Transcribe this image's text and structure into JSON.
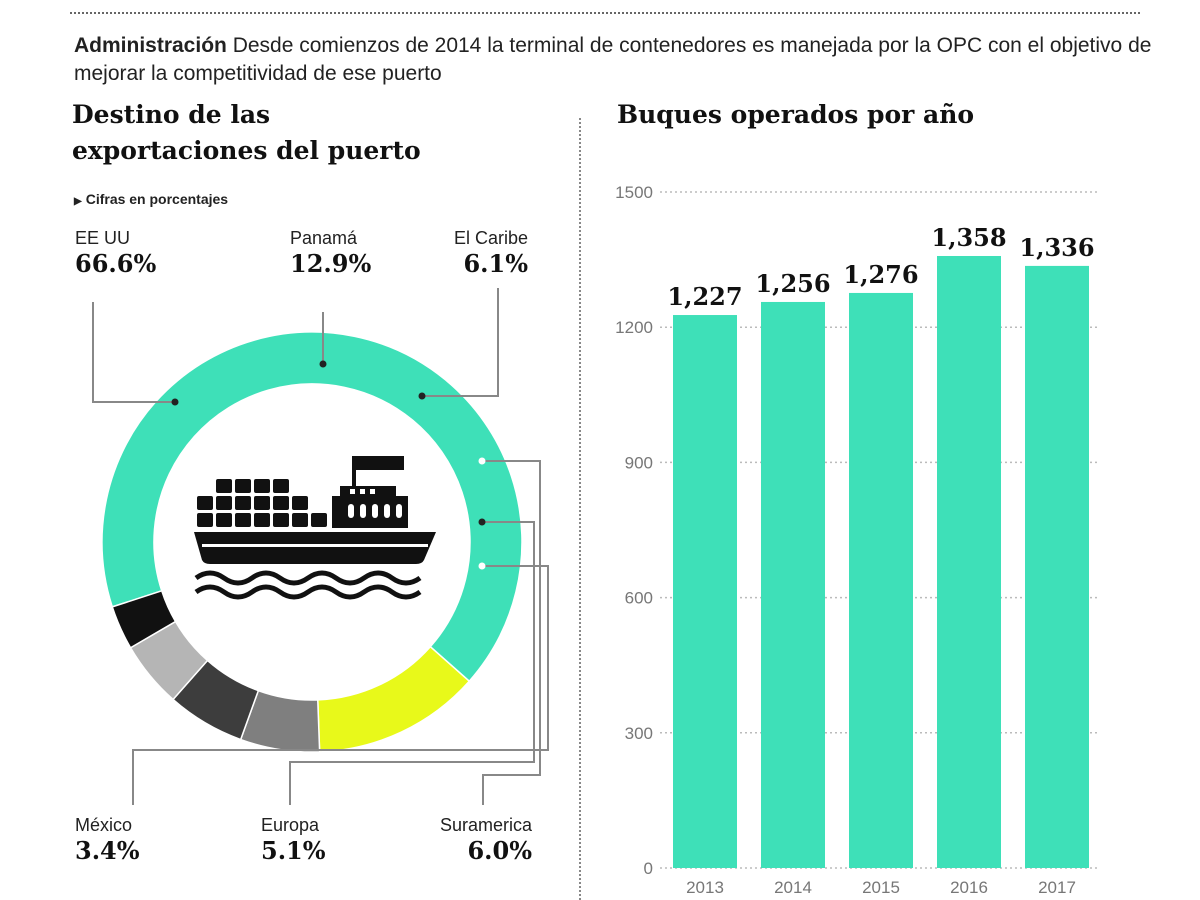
{
  "header": {
    "lead_bold": "Administración",
    "lead_text": "Desde comienzos de 2014 la terminal de contenedores es manejada por la OPC con el objetivo de mejorar la competitividad de ese puerto"
  },
  "colors": {
    "teal": "#3ee0b8",
    "yellow": "#e8f91a",
    "gray_mid": "#7f7f7f",
    "gray_dark": "#3d3d3d",
    "gray_light": "#b5b5b5",
    "black": "#111111"
  },
  "donut": {
    "title_line1": "Destino de las",
    "title_line2": "exportaciones del puerto",
    "note": "Cifras en porcentajes"
  },
  "bars": {
    "title": "Buques operados por año"
  },
  "chart_data": [
    {
      "type": "pie",
      "title": "Destino de las exportaciones del puerto",
      "subtitle": "Cifras en porcentajes",
      "categories": [
        "EE UU",
        "Panamá",
        "El Caribe",
        "México",
        "Europa",
        "Suramerica"
      ],
      "values": [
        66.6,
        12.9,
        6.1,
        3.4,
        5.1,
        6.0
      ],
      "labels": [
        "66.6%",
        "12.9%",
        "6.1%",
        "3.4%",
        "5.1%",
        "6.0%"
      ],
      "colors": [
        "#3ee0b8",
        "#e8f91a",
        "#7f7f7f",
        "#111111",
        "#b5b5b5",
        "#3d3d3d"
      ]
    },
    {
      "type": "bar",
      "title": "Buques operados por año",
      "categories": [
        "2013",
        "2014",
        "2015",
        "2016",
        "2017"
      ],
      "values": [
        1227,
        1256,
        1276,
        1358,
        1336
      ],
      "value_labels": [
        "1,227",
        "1,256",
        "1,276",
        "1,358",
        "1,336"
      ],
      "ylim": [
        0,
        1500
      ],
      "yticks": [
        "0",
        "300",
        "600",
        "900",
        "1200",
        "1500"
      ],
      "grid": true
    }
  ]
}
